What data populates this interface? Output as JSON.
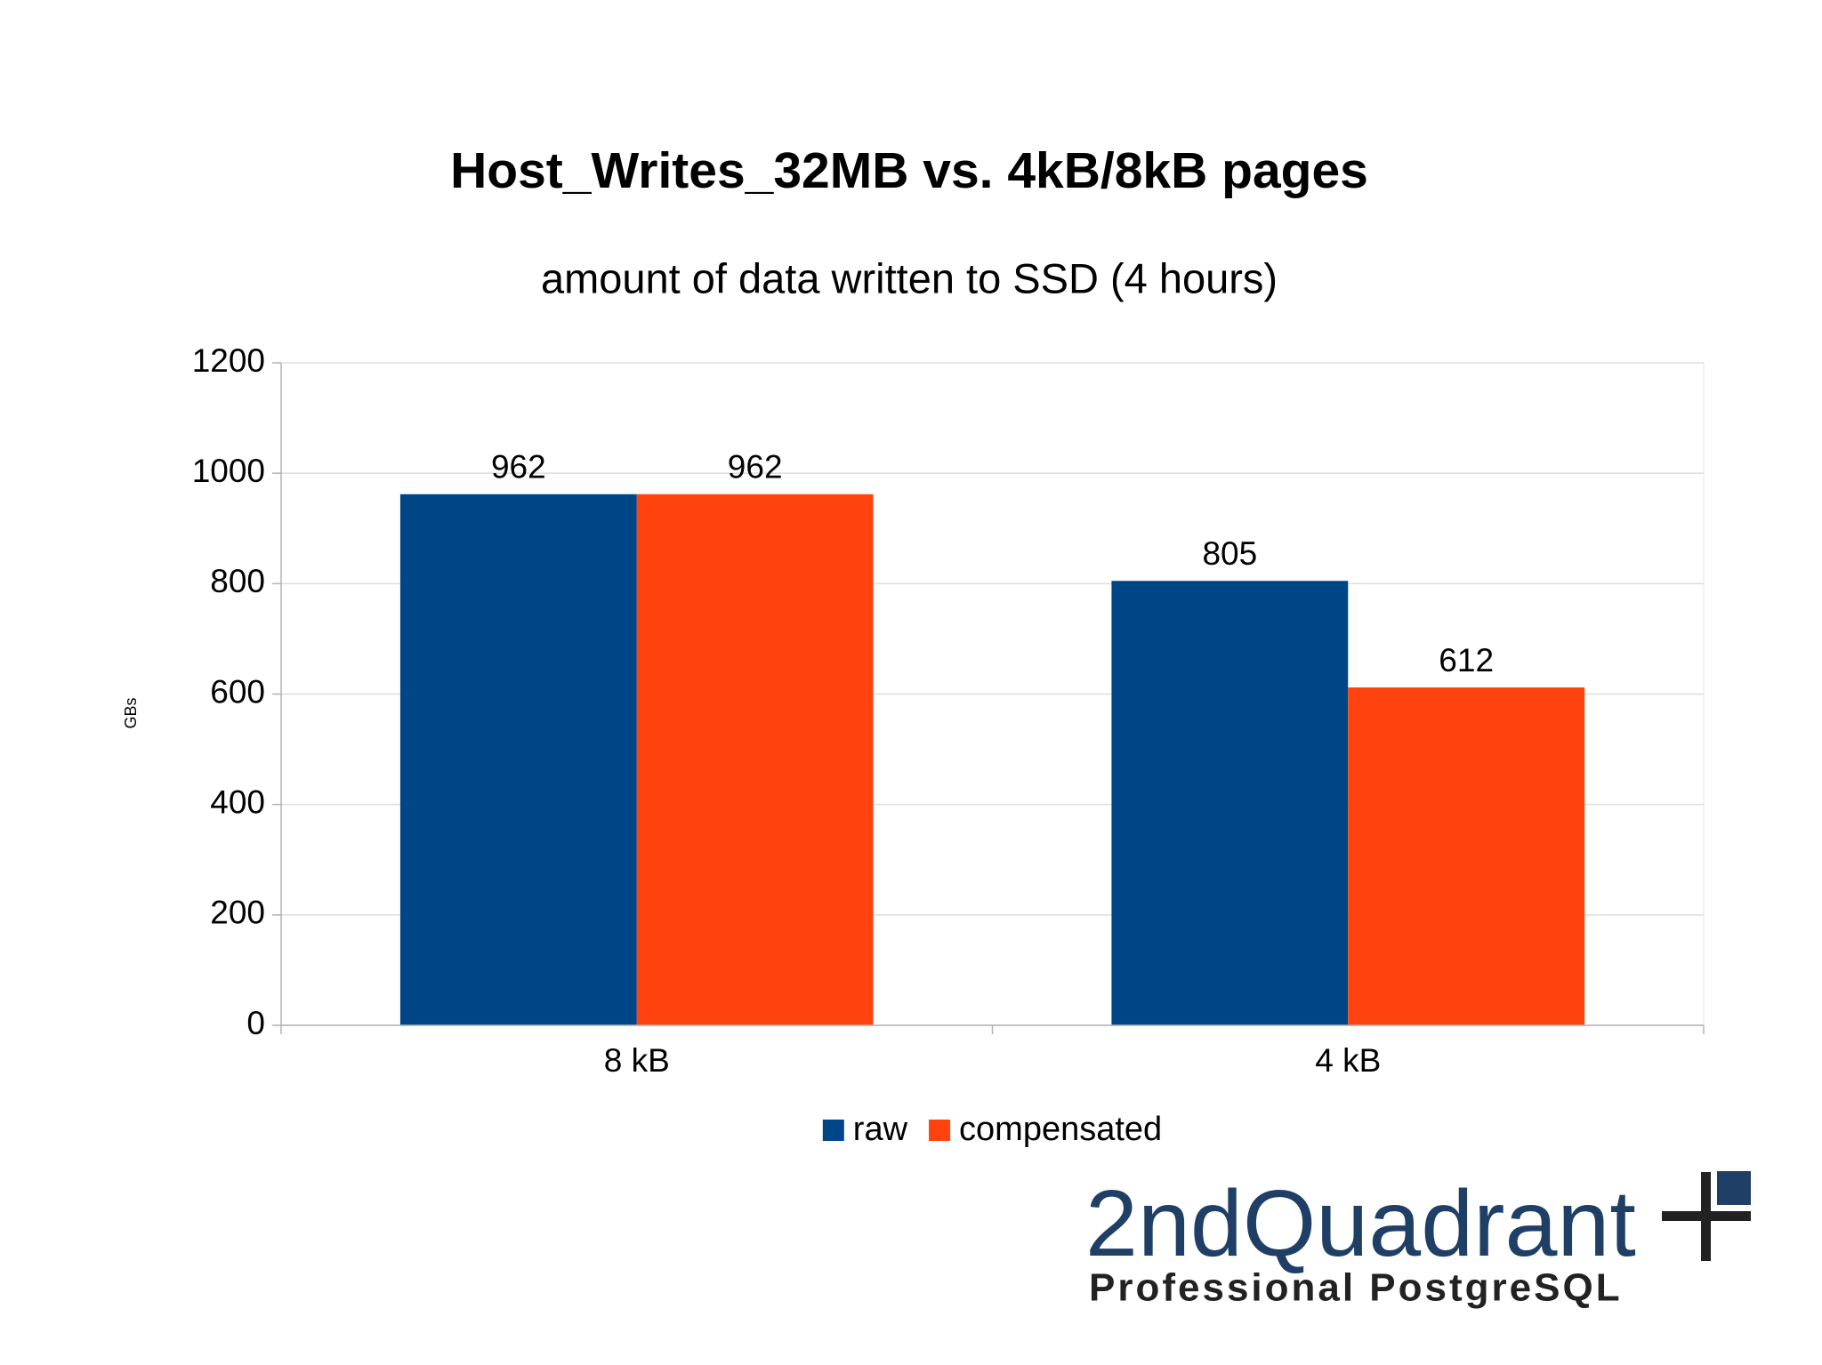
{
  "chart_data": {
    "type": "bar",
    "title": "Host_Writes_32MB vs. 4kB/8kB pages",
    "subtitle": "amount of data written to SSD (4 hours)",
    "y_label": "GBs",
    "categories": [
      "8 kB",
      "4 kB"
    ],
    "series": [
      {
        "name": "raw",
        "color": "#004586",
        "values": [
          962,
          805
        ]
      },
      {
        "name": "compensated",
        "color": "#ff420e",
        "values": [
          962,
          612
        ]
      }
    ],
    "ylim": [
      0,
      1200
    ],
    "yticks": [
      0,
      200,
      400,
      600,
      800,
      1000,
      1200
    ],
    "grid": true,
    "legend": "bottom"
  },
  "logo": {
    "name": "2ndQuadrant",
    "tagline": "Professional PostgreSQL"
  }
}
